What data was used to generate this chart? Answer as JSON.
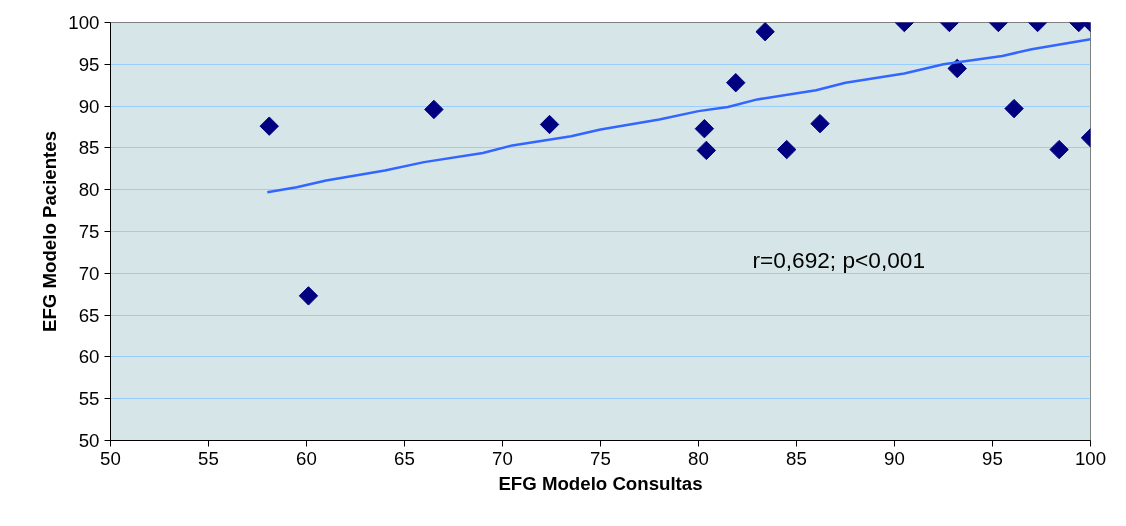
{
  "chart_data": {
    "type": "scatter",
    "xlabel": "EFG Modelo Consultas",
    "ylabel": "EFG Modelo Pacientes",
    "xlim": [
      50,
      100
    ],
    "xticks": [
      50,
      55,
      60,
      65,
      70,
      75,
      80,
      85,
      90,
      95,
      100
    ],
    "ylim": [
      50,
      100
    ],
    "yticks": [
      50,
      55,
      60,
      65,
      70,
      75,
      80,
      85,
      90,
      95,
      100
    ],
    "grid": "y",
    "series": [
      {
        "marker": "diamond",
        "color": "#000080",
        "x": [
          58.1,
          60.1,
          66.5,
          72.4,
          80.3,
          80.4,
          81.9,
          83.4,
          84.5,
          86.2,
          90.5,
          92.8,
          93.2,
          95.3,
          96.1,
          97.3,
          98.4,
          99.4,
          100,
          100
        ],
        "values": [
          87.6,
          67.3,
          89.6,
          87.8,
          87.3,
          84.7,
          92.8,
          98.9,
          84.8,
          87.9,
          100,
          100,
          94.5,
          100,
          89.7,
          100,
          84.8,
          100,
          100,
          86.2
        ]
      },
      {
        "type": "line",
        "color": "#3366ff",
        "x": [
          58,
          59.5,
          61,
          64,
          66,
          69,
          70.5,
          73.5,
          75,
          78,
          80,
          81.5,
          83,
          86,
          87.5,
          90.5,
          92.5,
          95.5,
          97,
          100
        ],
        "values": [
          79.7,
          80.3,
          81.1,
          82.3,
          83.3,
          84.4,
          85.3,
          86.4,
          87.2,
          88.4,
          89.4,
          89.9,
          90.8,
          91.9,
          92.8,
          93.9,
          95.0,
          96.0,
          96.8,
          98.0
        ]
      }
    ],
    "annotations": [
      "r=0,692; p<0,001"
    ]
  }
}
